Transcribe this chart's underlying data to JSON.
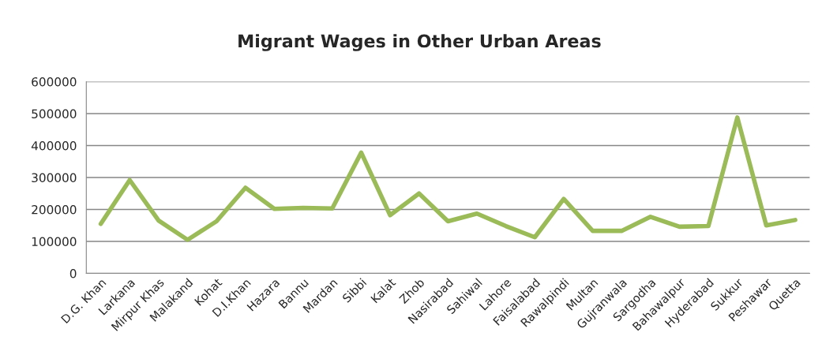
{
  "chart_data": {
    "type": "line",
    "title": "Migrant Wages in Other Urban Areas",
    "categories": [
      "D.G. Khan",
      "Larkana",
      "Mirpur Khas",
      "Malakand",
      "Kohat",
      "D.I.Khan",
      "Hazara",
      "Bannu",
      "Mardan",
      "Sibbi",
      "Kalat",
      "Zhob",
      "Nasirabad",
      "Sahiwal",
      "Lahore",
      "Faisalabad",
      "Rawalpindi",
      "Multan",
      "Gujranwala",
      "Sargodha",
      "Bahawalpur",
      "Hyderabad",
      "Sukkur",
      "Peshawar",
      "Quetta"
    ],
    "series": [
      {
        "color": "#9bbb59",
        "values": [
          155000,
          292000,
          165000,
          105000,
          163000,
          268000,
          202000,
          205000,
          203000,
          378000,
          182000,
          250000,
          163000,
          187000,
          148000,
          113000,
          233000,
          133000,
          133000,
          177000,
          146000,
          148000,
          488000,
          150000,
          167000
        ]
      }
    ],
    "ylim": [
      0,
      600000
    ],
    "yticks": [
      0,
      100000,
      200000,
      300000,
      400000,
      500000,
      600000
    ],
    "grid": "y",
    "legend": false,
    "marker": "none",
    "line_style": "solid"
  }
}
